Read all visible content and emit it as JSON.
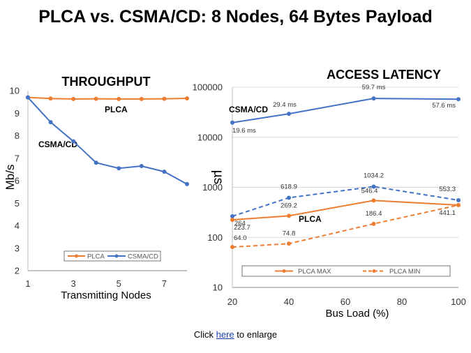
{
  "slide": {
    "title": "PLCA vs. CSMA/CD: 8 Nodes, 64 Bytes Payload",
    "footer_prefix": "Click ",
    "footer_link": "here",
    "footer_suffix": " to enlarge"
  },
  "colors": {
    "plca": "#ED7D31",
    "csma": "#4472C4",
    "grid": "#d9d9d9",
    "axis": "#888888"
  },
  "chart_data": [
    {
      "type": "line",
      "title": "THROUGHPUT",
      "xlabel": "Transmitting Nodes",
      "ylabel": "Mb/s",
      "xlim": [
        1,
        8
      ],
      "ylim": [
        2,
        10
      ],
      "xticks": [
        1,
        3,
        5,
        7
      ],
      "yticks": [
        2,
        3,
        4,
        5,
        6,
        7,
        8,
        9,
        10
      ],
      "grid": false,
      "legend_position": "bottom-inside",
      "annotations": [
        "PLCA",
        "CSMA/CD"
      ],
      "series": [
        {
          "name": "PLCA",
          "color": "#ED7D31",
          "dashed": false,
          "x": [
            1,
            2,
            3,
            4,
            5,
            6,
            7,
            8
          ],
          "y": [
            9.7,
            9.65,
            9.63,
            9.64,
            9.63,
            9.63,
            9.64,
            9.66
          ]
        },
        {
          "name": "CSMA/CD",
          "color": "#4472C4",
          "dashed": false,
          "x": [
            1,
            2,
            3,
            4,
            5,
            6,
            7,
            8
          ],
          "y": [
            9.7,
            8.6,
            7.75,
            6.8,
            6.55,
            6.65,
            6.4,
            5.85
          ]
        }
      ]
    },
    {
      "type": "line",
      "title": "ACCESS LATENCY",
      "xlabel": "Bus Load (%)",
      "ylabel": "µs",
      "yscale": "log",
      "xlim": [
        20,
        100
      ],
      "ylim": [
        10,
        100000
      ],
      "xticks": [
        20,
        40,
        60,
        80,
        100
      ],
      "yticks": [
        10,
        100,
        1000,
        10000,
        100000
      ],
      "grid": true,
      "legend_position": "bottom-inside",
      "annotations": [
        "CSMA/CD",
        "PLCA"
      ],
      "series": [
        {
          "name": "",
          "color": "#4472C4",
          "dashed": false,
          "x": [
            20,
            40,
            70,
            100
          ],
          "y": [
            19600,
            29400,
            59700,
            57600
          ],
          "labels": [
            "19.6 ms",
            "29.4 ms",
            "59.7 ms",
            "57.6 ms"
          ]
        },
        {
          "name": "",
          "color": "#4472C4",
          "dashed": true,
          "x": [
            20,
            40,
            70,
            100
          ],
          "y": [
            264,
            618.9,
            1034.2,
            553.3
          ],
          "labels": [
            "264",
            "618.9",
            "1034.2",
            "553.3"
          ]
        },
        {
          "name": "PLCA MAX",
          "color": "#ED7D31",
          "dashed": false,
          "x": [
            20,
            40,
            70,
            100
          ],
          "y": [
            223.7,
            269.2,
            546.4,
            441.1
          ],
          "labels": [
            "223.7",
            "269.2",
            "546.4",
            "441.1"
          ]
        },
        {
          "name": "PLCA MIN",
          "color": "#ED7D31",
          "dashed": true,
          "x": [
            20,
            40,
            70,
            100
          ],
          "y": [
            64.0,
            74.8,
            186.4,
            441.1
          ],
          "labels": [
            "64.0",
            "74.8",
            "186.4",
            ""
          ]
        }
      ]
    }
  ]
}
